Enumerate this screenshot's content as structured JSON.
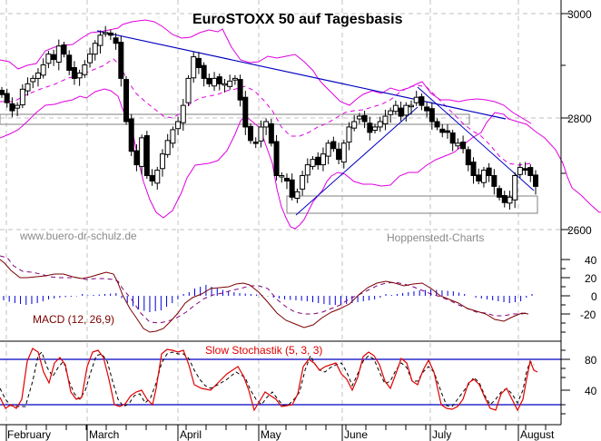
{
  "header": {
    "title": "EuroSTOXX 50 auf Tagesbasis"
  },
  "watermarks": {
    "left": "www.buero-dr-schulz.de",
    "right": "Hoppenstedt-Charts"
  },
  "indicators": {
    "macd_label": "MACD (12, 26,9)",
    "stoch_label": "Slow Stochastik (5, 3, 3)"
  },
  "axes": {
    "price_ticks": [
      "3000",
      "2800",
      "2600"
    ],
    "macd_ticks": [
      "40",
      "20",
      "0",
      "-20"
    ],
    "stoch_ticks": [
      "80",
      "40"
    ],
    "months": [
      "February",
      "March",
      "April",
      "May",
      "June",
      "July",
      "August"
    ]
  },
  "colors": {
    "band": "#e000e0",
    "trend": "#0000c0",
    "macd_line": "#7a0000",
    "macd_signal": "#800080",
    "histogram": "#0000e0",
    "stoch_k": "#e00000",
    "stoch_d": "#000000",
    "grid": "#c0c0c0",
    "box": "#808080"
  },
  "chart_data": [
    {
      "type": "candlestick",
      "title": "EuroSTOXX 50 auf Tagesbasis",
      "xlabel": "",
      "ylabel": "",
      "ylim": [
        2580,
        3030
      ],
      "yticks": [
        2600,
        2800,
        3000
      ],
      "x_categories": [
        "February",
        "March",
        "April",
        "May",
        "June",
        "July",
        "August"
      ],
      "grid": true,
      "close_approx": [
        2850,
        2835,
        2820,
        2830,
        2860,
        2870,
        2880,
        2890,
        2905,
        2925,
        2915,
        2940,
        2925,
        2895,
        2880,
        2890,
        2905,
        2925,
        2945,
        2960,
        2965,
        2960,
        2945,
        2880,
        2800,
        2745,
        2720,
        2770,
        2700,
        2690,
        2710,
        2740,
        2765,
        2785,
        2800,
        2830,
        2880,
        2920,
        2900,
        2880,
        2870,
        2880,
        2870,
        2870,
        2875,
        2880,
        2840,
        2790,
        2765,
        2760,
        2790,
        2800,
        2760,
        2700,
        2700,
        2690,
        2660,
        2670,
        2700,
        2720,
        2730,
        2720,
        2740,
        2760,
        2750,
        2730,
        2760,
        2790,
        2800,
        2810,
        2800,
        2780,
        2790,
        2800,
        2810,
        2820,
        2830,
        2810,
        2830,
        2830,
        2845,
        2830,
        2820,
        2800,
        2790,
        2780,
        2780,
        2760,
        2760,
        2750,
        2720,
        2700,
        2690,
        2710,
        2700,
        2680,
        2660,
        2650,
        2660,
        2700,
        2715,
        2710,
        2700,
        2680
      ],
      "series": [
        {
          "name": "Upper Bollinger Band",
          "approx_values": [
            2870,
            2880,
            2885,
            2900,
            2920,
            2940,
            2965,
            2975,
            2970,
            2945,
            2910,
            2890,
            2880,
            2880,
            2860,
            2840,
            2850,
            2830,
            2800,
            2805,
            2810,
            2820,
            2840,
            2845,
            2840,
            2820,
            2800,
            2790
          ]
        },
        {
          "name": "Lower Bollinger Band",
          "approx_values": [
            2790,
            2785,
            2780,
            2800,
            2840,
            2850,
            2850,
            2790,
            2710,
            2650,
            2670,
            2700,
            2705,
            2710,
            2705,
            2660,
            2620,
            2620,
            2650,
            2700,
            2720,
            2740,
            2755,
            2760,
            2770,
            2750,
            2700,
            2640,
            2630,
            2640
          ]
        },
        {
          "name": "Middle Band (dashed)",
          "approx_values": [
            2830,
            2840,
            2855,
            2880,
            2910,
            2930,
            2880,
            2800,
            2760,
            2740,
            2760,
            2800,
            2830,
            2850,
            2860,
            2860,
            2820,
            2780,
            2730,
            2720,
            2750,
            2775,
            2780,
            2800,
            2810,
            2805,
            2790,
            2770,
            2740,
            2720,
            2710
          ]
        }
      ],
      "annotations": [
        "Downtrend line from March high ~2965 to ~2800 (July)",
        "Uptrend line May low ~2640 to ~2820 (late June)",
        "Short downtrend line from ~2840 (early July) to ~2680 (August)",
        "Horizontal resistance zone ~2790-2810",
        "Horizontal support zone ~2640-2670"
      ]
    },
    {
      "type": "line",
      "title": "MACD (12, 26,9)",
      "ylim": [
        -50,
        50
      ],
      "yticks": [
        40,
        20,
        0,
        -20
      ],
      "series": [
        {
          "name": "MACD",
          "approx_values": [
            35,
            28,
            20,
            18,
            20,
            22,
            18,
            16,
            20,
            22,
            20,
            5,
            -15,
            -30,
            -38,
            -32,
            -20,
            -5,
            5,
            10,
            12,
            14,
            12,
            10,
            8,
            18,
            18,
            12,
            2,
            -5,
            -15,
            -22,
            -18,
            -10,
            -2,
            6,
            12,
            15,
            18,
            16,
            10,
            2,
            -5,
            -12,
            -20,
            -28,
            -25,
            -20
          ]
        },
        {
          "name": "Signal",
          "approx_values": [
            38,
            32,
            25,
            20,
            19,
            21,
            20,
            18,
            19,
            20,
            20,
            12,
            -2,
            -15,
            -28,
            -32,
            -28,
            -18,
            -5,
            4,
            9,
            12,
            13,
            12,
            10,
            13,
            16,
            15,
            10,
            3,
            -5,
            -12,
            -16,
            -15,
            -10,
            -2,
            5,
            10,
            14,
            15,
            13,
            8,
            2,
            -5,
            -12,
            -18,
            -22,
            -22
          ]
        },
        {
          "name": "Histogram",
          "approx_values": [
            -5,
            -8,
            -10,
            -8,
            -4,
            -2,
            -1,
            0,
            1,
            2,
            3,
            -8,
            -15,
            -18,
            -16,
            -8,
            0,
            8,
            12,
            8,
            5,
            3,
            2,
            1,
            -2,
            -4,
            -5,
            -6,
            -8,
            -10,
            -10,
            -8,
            -6,
            -4,
            0,
            2,
            4,
            6,
            7,
            6,
            5,
            2,
            -2,
            -4,
            -6,
            -8,
            -6,
            2
          ]
        }
      ]
    },
    {
      "type": "line",
      "title": "Slow Stochastik (5, 3, 3)",
      "ylim": [
        0,
        100
      ],
      "yticks": [
        80,
        40
      ],
      "reference_lines": [
        80,
        20
      ],
      "series": [
        {
          "name": "%K (red)",
          "approx_values": [
            30,
            15,
            20,
            18,
            20,
            60,
            85,
            80,
            55,
            45,
            70,
            62,
            35,
            30,
            45,
            80,
            85,
            80,
            50,
            20,
            25,
            40,
            30,
            20,
            55,
            82,
            88,
            85,
            70,
            50,
            45,
            40,
            45,
            55,
            52,
            20,
            25,
            38,
            20,
            30,
            50,
            75,
            80,
            60,
            52,
            40,
            75,
            92,
            80,
            40,
            50,
            88,
            80,
            42,
            38,
            80,
            72,
            20,
            18,
            22,
            48,
            40,
            28,
            15,
            40,
            42,
            30,
            20,
            40,
            80,
            75,
            55
          ]
        },
        {
          "name": "%D (dashed)",
          "approx_values": [
            40,
            20,
            18,
            18,
            30,
            55,
            80,
            78,
            62,
            50,
            60,
            65,
            45,
            35,
            40,
            65,
            80,
            82,
            62,
            35,
            25,
            35,
            35,
            25,
            40,
            70,
            85,
            85,
            75,
            55,
            48,
            42,
            42,
            50,
            55,
            30,
            22,
            30,
            25,
            28,
            40,
            65,
            78,
            68,
            55,
            45,
            60,
            85,
            85,
            55,
            48,
            75,
            82,
            55,
            40,
            65,
            75,
            35,
            20,
            22,
            38,
            42,
            32,
            20,
            30,
            38,
            35,
            22,
            32,
            65,
            75,
            65
          ]
        }
      ]
    }
  ]
}
